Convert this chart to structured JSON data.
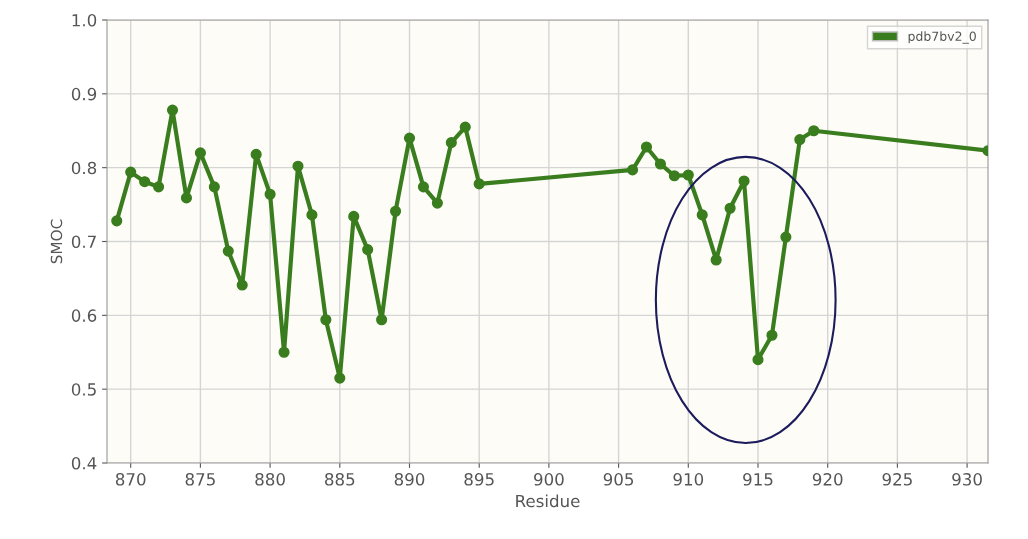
{
  "chart_data": {
    "type": "line",
    "xlabel": "Residue",
    "ylabel": "SMOC",
    "xlim": [
      868.3,
      931.5
    ],
    "xticks": [
      870,
      875,
      880,
      885,
      890,
      895,
      900,
      905,
      910,
      915,
      920,
      925,
      930
    ],
    "ylim": [
      0.4,
      1.0
    ],
    "yticks": [
      {
        "value": 0.4,
        "label": "0.4"
      },
      {
        "value": 0.5,
        "label": "0.5"
      },
      {
        "value": 0.6,
        "label": "0.6"
      },
      {
        "value": 0.7,
        "label": "0.7"
      },
      {
        "value": 0.8,
        "label": "0.8"
      },
      {
        "value": 0.9,
        "label": "0.9"
      },
      {
        "value": 1.0,
        "label": "1.0"
      }
    ],
    "grid": true,
    "legend": "top right",
    "marker": "circle",
    "line_style": "solid",
    "x": [
      869,
      870,
      871,
      872,
      873,
      874,
      875,
      876,
      877,
      878,
      879,
      880,
      881,
      882,
      883,
      884,
      885,
      886,
      887,
      888,
      889,
      890,
      891,
      892,
      893,
      894,
      895,
      906,
      907,
      908,
      909,
      910,
      911,
      912,
      913,
      914,
      915,
      916,
      917,
      918,
      919,
      931.5
    ],
    "series": [
      {
        "name": "pdb7bv2_0",
        "color": "#3a7d1e",
        "values": [
          0.728,
          0.794,
          0.781,
          0.774,
          0.878,
          0.759,
          0.82,
          0.774,
          0.687,
          0.641,
          0.818,
          0.764,
          0.55,
          0.802,
          0.736,
          0.594,
          0.515,
          0.734,
          0.689,
          0.594,
          0.741,
          0.84,
          0.774,
          0.752,
          0.834,
          0.855,
          0.778,
          0.797,
          0.828,
          0.805,
          0.789,
          0.79,
          0.736,
          0.675,
          0.745,
          0.782,
          0.54,
          0.573,
          0.706,
          0.838,
          0.85,
          0.823
        ]
      }
    ]
  }
}
